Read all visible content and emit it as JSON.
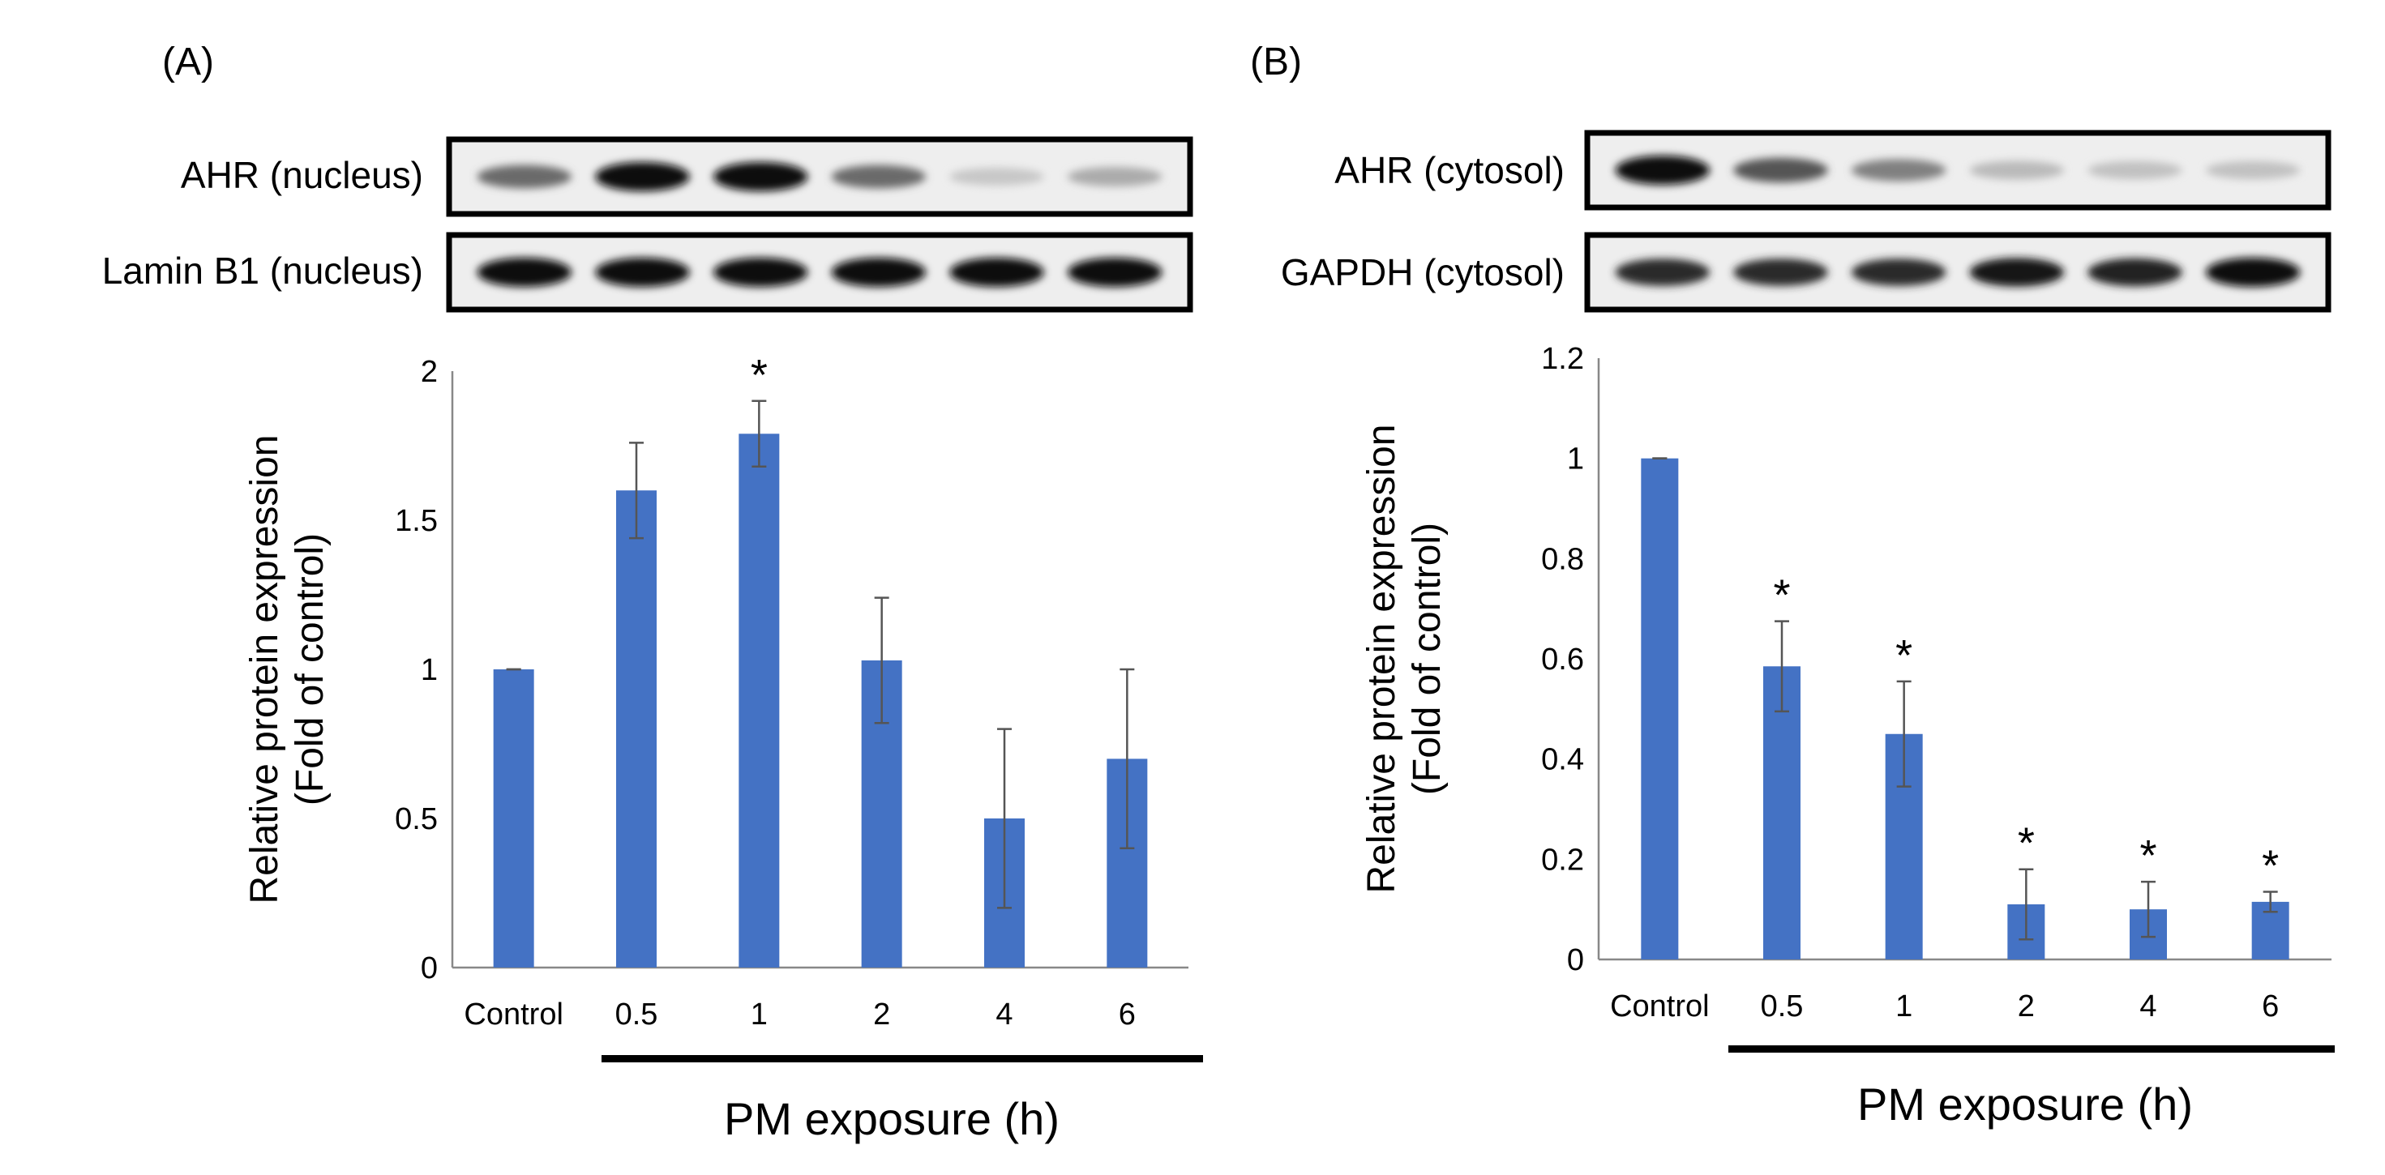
{
  "panels": [
    {
      "label": "(A)",
      "blots": [
        {
          "label": "AHR (nucleus)",
          "bands": [
            0.55,
            1.0,
            1.0,
            0.55,
            0.12,
            0.25
          ]
        },
        {
          "label": "Lamin B1 (nucleus)",
          "bands": [
            1.0,
            1.0,
            1.0,
            1.0,
            1.0,
            1.0
          ]
        }
      ],
      "xlabel": "PM exposure (h)"
    },
    {
      "label": "(B)",
      "blots": [
        {
          "label": "AHR (cytosol)",
          "bands": [
            1.0,
            0.65,
            0.45,
            0.18,
            0.15,
            0.15
          ]
        },
        {
          "label": "GAPDH (cytosol)",
          "bands": [
            0.85,
            0.85,
            0.85,
            0.95,
            0.9,
            1.0
          ]
        }
      ],
      "xlabel": "PM exposure (h)"
    }
  ],
  "chart_data": [
    {
      "type": "bar",
      "panel": "(A)",
      "categories": [
        "Control",
        "0.5",
        "1",
        "2",
        "4",
        "6"
      ],
      "values": [
        1.0,
        1.6,
        1.79,
        1.03,
        0.5,
        0.7
      ],
      "errors": [
        0.0,
        0.16,
        0.11,
        0.21,
        0.3,
        0.3
      ],
      "significance": [
        "",
        "",
        "*",
        "",
        "",
        ""
      ],
      "ylabel_lines": [
        "Relative protein expression",
        "(Fold of control)"
      ],
      "yticks": [
        "0",
        "0.5",
        "1",
        "1.5",
        "2"
      ],
      "ylim": [
        0,
        2
      ],
      "bar_color": "#4472c4",
      "xlabel": "PM exposure (h)"
    },
    {
      "type": "bar",
      "panel": "(B)",
      "categories": [
        "Control",
        "0.5",
        "1",
        "2",
        "4",
        "6"
      ],
      "values": [
        1.0,
        0.585,
        0.45,
        0.11,
        0.1,
        0.115
      ],
      "errors": [
        0.0,
        0.09,
        0.105,
        0.07,
        0.055,
        0.02
      ],
      "significance": [
        "",
        "*",
        "*",
        "*",
        "*",
        "*"
      ],
      "ylabel_lines": [
        "Relative protein expression",
        "(Fold of control)"
      ],
      "yticks": [
        "0",
        "0.2",
        "0.4",
        "0.6",
        "0.8",
        "1",
        "1.2"
      ],
      "ylim": [
        0,
        1.2
      ],
      "bar_color": "#4472c4",
      "xlabel": "PM exposure (h)"
    }
  ]
}
